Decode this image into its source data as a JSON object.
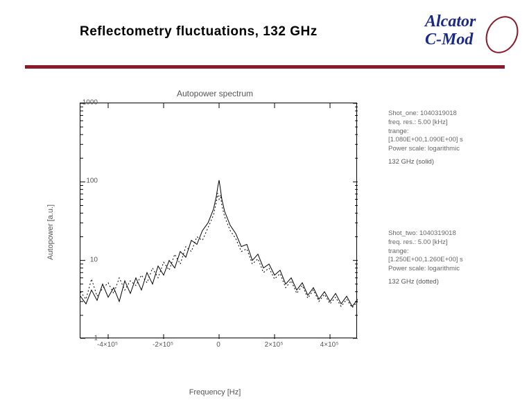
{
  "header": {
    "title": "Reflectometry fluctuations, 132 GHz",
    "logo_line1": "Alcator",
    "logo_line2": "C-Mod",
    "logo_text_color": "#1a2a8a",
    "logo_ellipse_color": "#8a1a2a",
    "divider_color": "#8a1a2a"
  },
  "chart": {
    "title": "Autopower spectrum",
    "xlabel": "Frequency [Hz]",
    "ylabel": "Autopower [a.u.]",
    "xlim": [
      -500000,
      500000
    ],
    "ylim": [
      1,
      1000
    ],
    "yscale": "log",
    "yticks": [
      1,
      10,
      100,
      1000
    ],
    "ytick_labels": [
      "1",
      "10",
      "100",
      "1000"
    ],
    "xticks": [
      -400000,
      -200000,
      0,
      200000,
      400000
    ],
    "xtick_labels": [
      "-4×10⁵",
      "-2×10⁵",
      "0",
      "2×10⁵",
      "4×10⁵"
    ],
    "background_color": "#ffffff",
    "axis_color": "#000000",
    "label_color": "#555555",
    "label_fontsize": 11,
    "tick_fontsize": 10,
    "title_fontsize": 12,
    "series": [
      {
        "name": "solid",
        "style": "solid",
        "color": "#000000",
        "line_width": 1,
        "x_khz": [
          -500,
          -480,
          -460,
          -440,
          -420,
          -400,
          -380,
          -360,
          -340,
          -320,
          -300,
          -280,
          -260,
          -240,
          -220,
          -200,
          -180,
          -160,
          -140,
          -120,
          -100,
          -80,
          -60,
          -40,
          -20,
          -10,
          -5,
          0,
          5,
          10,
          20,
          40,
          60,
          80,
          100,
          120,
          140,
          160,
          180,
          200,
          220,
          240,
          260,
          280,
          300,
          320,
          340,
          360,
          380,
          400,
          420,
          440,
          460,
          480,
          500
        ],
        "y": [
          3.5,
          2.8,
          4.2,
          3.1,
          5.0,
          3.4,
          4.5,
          3.0,
          5.5,
          3.8,
          6.0,
          4.2,
          7.0,
          5.0,
          8.5,
          6.5,
          10,
          8,
          13,
          11,
          18,
          16,
          24,
          30,
          45,
          65,
          85,
          105,
          80,
          60,
          42,
          28,
          22,
          15,
          16,
          10,
          12,
          8,
          9,
          6.5,
          7.5,
          5,
          6,
          4.2,
          5.2,
          3.6,
          4.5,
          3.2,
          4.0,
          3.0,
          3.8,
          2.8,
          3.5,
          2.6,
          3.2
        ]
      },
      {
        "name": "dotted",
        "style": "dotted",
        "color": "#000000",
        "line_width": 1,
        "x_khz": [
          -500,
          -480,
          -460,
          -440,
          -420,
          -400,
          -380,
          -360,
          -340,
          -320,
          -300,
          -280,
          -260,
          -240,
          -220,
          -200,
          -180,
          -160,
          -140,
          -120,
          -100,
          -80,
          -60,
          -40,
          -20,
          -10,
          -5,
          0,
          5,
          10,
          20,
          40,
          60,
          80,
          100,
          120,
          140,
          160,
          180,
          200,
          220,
          240,
          260,
          280,
          300,
          320,
          340,
          360,
          380,
          400,
          420,
          440,
          460,
          480,
          500
        ],
        "y": [
          4.0,
          3.2,
          5.8,
          3.5,
          4.4,
          5.2,
          3.8,
          6.0,
          4.2,
          5.5,
          4.8,
          6.5,
          5.2,
          8.0,
          6.0,
          9.5,
          7.5,
          12,
          9,
          15,
          13,
          20,
          18,
          26,
          38,
          55,
          72,
          60,
          68,
          50,
          36,
          24,
          19,
          13,
          14,
          9,
          10.5,
          7,
          8,
          5.8,
          6.8,
          4.5,
          5.5,
          3.8,
          4.8,
          3.3,
          4.2,
          3.0,
          3.7,
          2.8,
          3.4,
          2.6,
          3.2,
          2.5,
          3.0
        ]
      }
    ]
  },
  "sidebar": {
    "block1": {
      "shot_label": "Shot_one: 1040319018",
      "freq_res": "freq. res.:    5.00 [kHz]",
      "trange_label": "trange:",
      "trange_val": "[1.080E+00,1.090E+00] s",
      "scale": "Power scale: logarithmic",
      "tag": "132 GHz (solid)"
    },
    "block2": {
      "shot_label": "Shot_two: 1040319018",
      "freq_res": "freq. res.:    5.00 [kHz]",
      "trange_label": "trange:",
      "trange_val": "[1.250E+00,1.260E+00] s",
      "scale": "Power scale: logarithmic",
      "tag": "132 GHz (dotted)"
    }
  }
}
